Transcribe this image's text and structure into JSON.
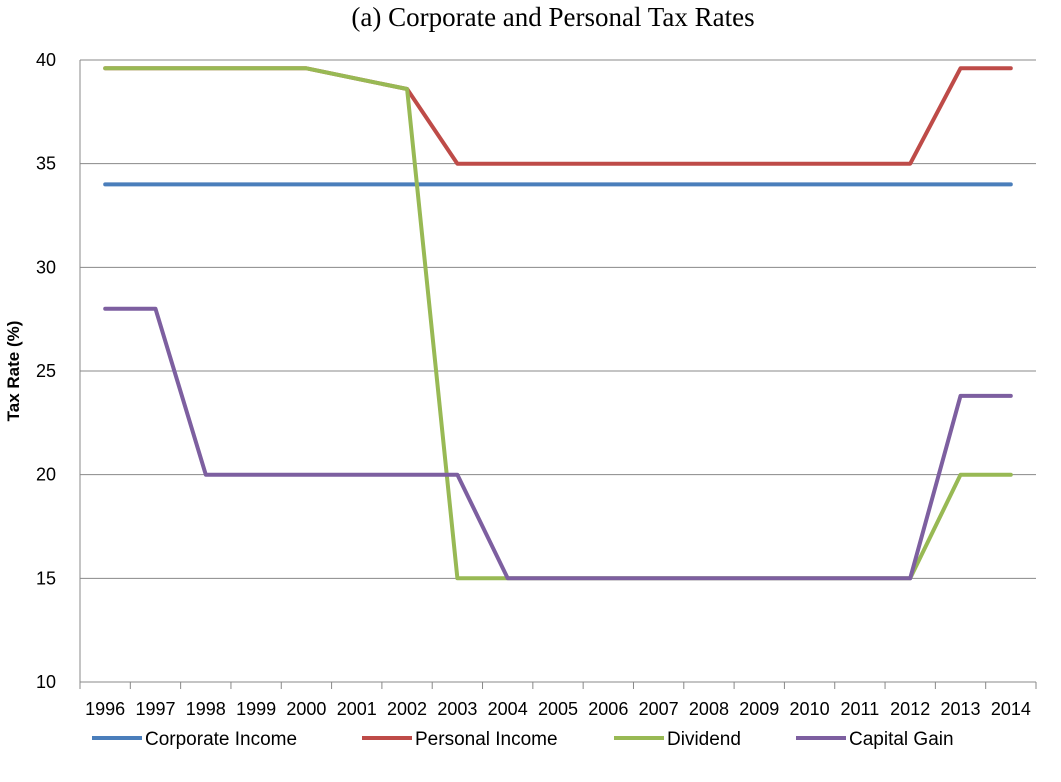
{
  "chart_data": {
    "type": "line",
    "title": "(a)  Corporate and Personal Tax Rates",
    "ylabel": "Tax Rate (%)",
    "xlabel": "",
    "ylim": [
      10,
      40
    ],
    "yticks": [
      10,
      15,
      20,
      25,
      30,
      35,
      40
    ],
    "grid": "horizontal",
    "legend_position": "bottom",
    "categories": [
      "1996",
      "1997",
      "1998",
      "1999",
      "2000",
      "2001",
      "2002",
      "2003",
      "2004",
      "2005",
      "2006",
      "2007",
      "2008",
      "2009",
      "2010",
      "2011",
      "2012",
      "2013",
      "2014"
    ],
    "series": [
      {
        "name": "Corporate Income",
        "color": "#4a7ebb",
        "values": [
          34,
          34,
          34,
          34,
          34,
          34,
          34,
          34,
          34,
          34,
          34,
          34,
          34,
          34,
          34,
          34,
          34,
          34,
          34
        ]
      },
      {
        "name": "Personal Income",
        "color": "#be4b48",
        "values": [
          39.6,
          39.6,
          39.6,
          39.6,
          39.6,
          39.1,
          38.6,
          35,
          35,
          35,
          35,
          35,
          35,
          35,
          35,
          35,
          35,
          39.6,
          39.6
        ]
      },
      {
        "name": "Dividend",
        "color": "#98b954",
        "values": [
          39.6,
          39.6,
          39.6,
          39.6,
          39.6,
          39.1,
          38.6,
          15,
          15,
          15,
          15,
          15,
          15,
          15,
          15,
          15,
          15,
          20,
          20
        ]
      },
      {
        "name": "Capital Gain",
        "color": "#7d5fa0",
        "values": [
          28,
          28,
          20,
          20,
          20,
          20,
          20,
          20,
          15,
          15,
          15,
          15,
          15,
          15,
          15,
          15,
          15,
          23.8,
          23.8
        ]
      }
    ]
  }
}
